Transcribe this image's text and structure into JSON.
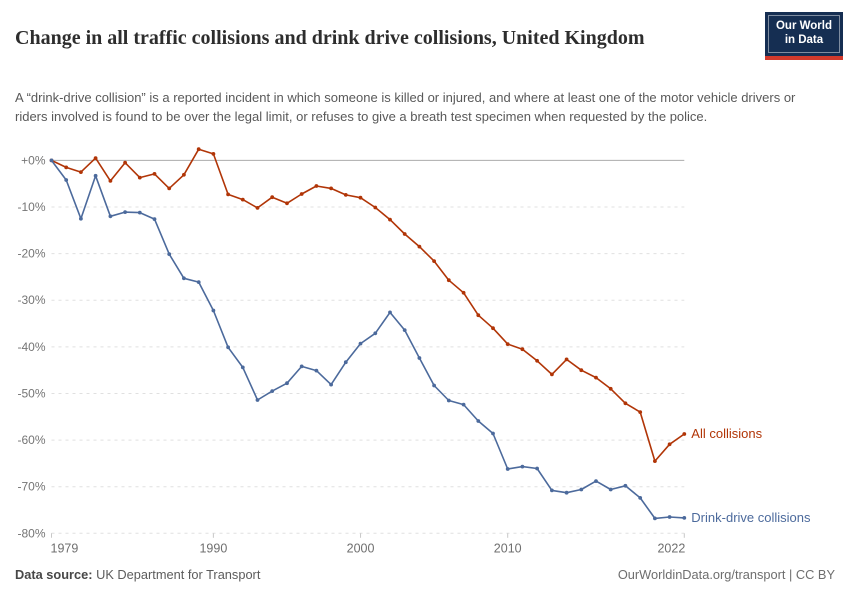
{
  "header": {
    "title": "Change in all traffic collisions and drink drive collisions, United Kingdom",
    "subtitle": "A “drink-drive collision” is a reported incident in which someone is killed or injured, and where at least one of the motor vehicle drivers or riders involved is found to be over the legal limit, or refuses to give a breath test specimen when requested by the police.",
    "logo": {
      "line1": "Our World",
      "line2": "in Data"
    }
  },
  "footer": {
    "data_source_label": "Data source:",
    "data_source_value": " UK Department for Transport",
    "attribution": "OurWorldinData.org/transport | CC BY"
  },
  "colors": {
    "all_collisions": "#B13507",
    "drink_drive": "#4C6A9C",
    "zero_line": "#ababab",
    "gridline": "#e0e0e0",
    "axis_text": "#757575"
  },
  "chart_data": {
    "type": "line",
    "title": "Change in all traffic collisions and drink drive collisions, United Kingdom",
    "xlabel": "",
    "ylabel": "",
    "ylim": [
      -80,
      2.6
    ],
    "grid": "horizontal-dashed",
    "legend_position": "end-of-line-labels",
    "x": [
      1979,
      1980,
      1981,
      1982,
      1983,
      1984,
      1985,
      1986,
      1987,
      1988,
      1989,
      1990,
      1991,
      1992,
      1993,
      1994,
      1995,
      1996,
      1997,
      1998,
      1999,
      2000,
      2001,
      2002,
      2003,
      2004,
      2005,
      2006,
      2007,
      2008,
      2009,
      2010,
      2011,
      2012,
      2013,
      2014,
      2015,
      2016,
      2017,
      2018,
      2019,
      2020,
      2021,
      2022
    ],
    "x_ticks": [
      1979,
      1990,
      2000,
      2010,
      2022
    ],
    "y_ticks": [
      0,
      -10,
      -20,
      -30,
      -40,
      -50,
      -60,
      -70,
      -80
    ],
    "y_tick_labels": [
      "+0%",
      "-10%",
      "-20%",
      "-30%",
      "-40%",
      "-50%",
      "-60%",
      "-70%",
      "-80%"
    ],
    "series": [
      {
        "name": "All collisions",
        "color": "#B13507",
        "values": [
          0,
          -1.5,
          -2.5,
          0.5,
          -4.4,
          -0.5,
          -3.7,
          -2.9,
          -6.0,
          -3.1,
          2.4,
          1.4,
          -7.3,
          -8.4,
          -10.2,
          -7.9,
          -9.2,
          -7.2,
          -5.5,
          -6.0,
          -7.4,
          -8.0,
          -10.1,
          -12.7,
          -15.8,
          -18.5,
          -21.6,
          -25.7,
          -28.4,
          -33.2,
          -36.0,
          -39.4,
          -40.5,
          -43.0,
          -45.9,
          -42.7,
          -45.0,
          -46.6,
          -49.0,
          -52.1,
          -54.0,
          -64.5,
          -60.9,
          -58.7
        ]
      },
      {
        "name": "Drink-drive collisions",
        "color": "#4C6A9C",
        "values": [
          0,
          -4.2,
          -12.5,
          -3.3,
          -12.0,
          -11.1,
          -11.2,
          -12.6,
          -20.1,
          -25.3,
          -26.1,
          -32.2,
          -40.1,
          -44.4,
          -51.4,
          -49.5,
          -47.8,
          -44.2,
          -45.1,
          -48.1,
          -43.3,
          -39.3,
          -37.1,
          -32.6,
          -36.4,
          -42.4,
          -48.3,
          -51.5,
          -52.4,
          -55.9,
          -58.6,
          -66.2,
          -65.7,
          -66.1,
          -70.8,
          -71.3,
          -70.6,
          -68.8,
          -70.6,
          -69.8,
          -72.4,
          -76.8,
          -76.5,
          -76.7
        ]
      }
    ]
  }
}
